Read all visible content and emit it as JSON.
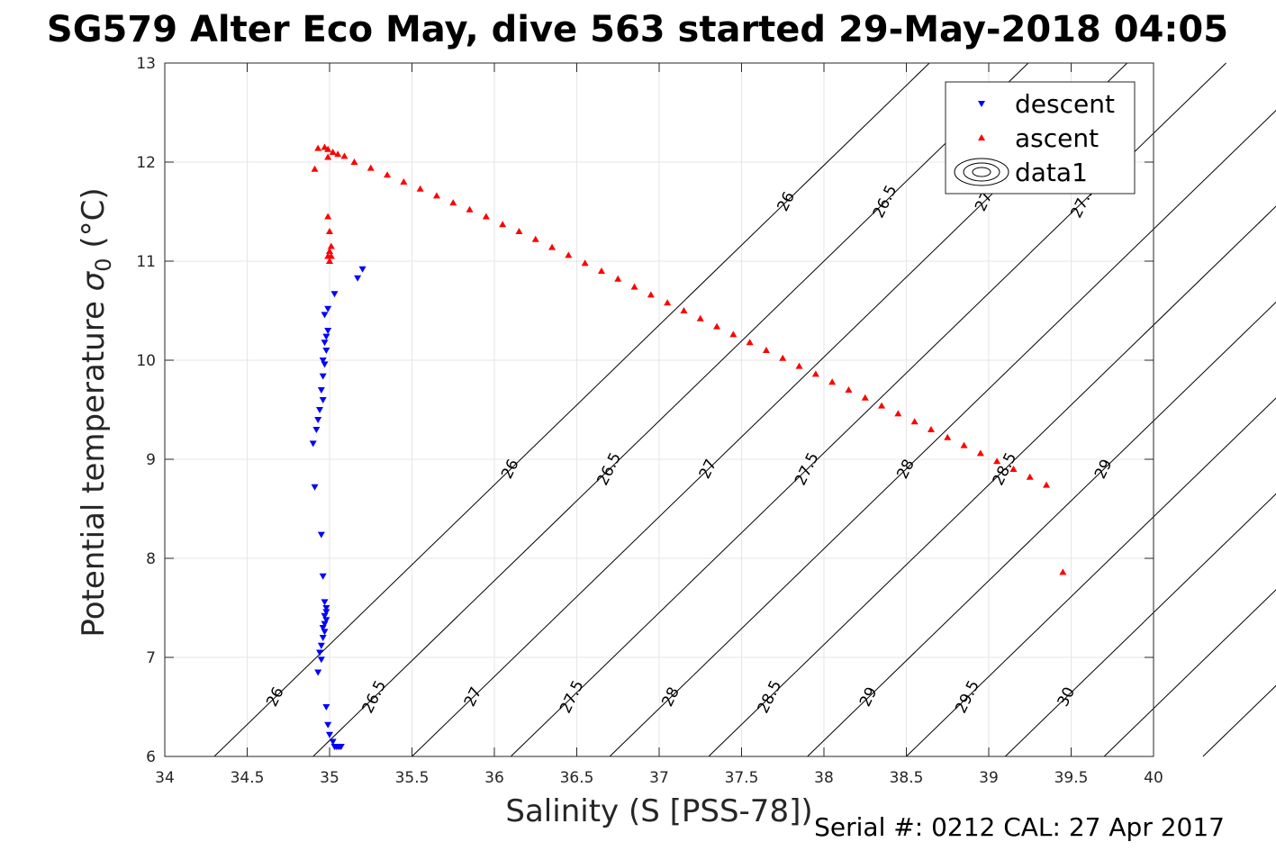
{
  "chart_data": {
    "type": "scatter",
    "title": "SG579 Alter Eco May, dive 563 started 29-May-2018 04:05",
    "xlabel": "Salinity (S [PSS-78])",
    "ylabel_main": "Potential temperature ",
    "ylabel_sigma": "σ",
    "ylabel_sub": "0",
    "ylabel_unit": " (°C)",
    "xlim": [
      34,
      40
    ],
    "ylim": [
      6,
      13
    ],
    "xticks": [
      "34",
      "34.5",
      "35",
      "35.5",
      "36",
      "36.5",
      "37",
      "37.5",
      "38",
      "38.5",
      "39",
      "39.5",
      "40"
    ],
    "yticks": [
      "6",
      "7",
      "8",
      "9",
      "10",
      "11",
      "12",
      "13"
    ],
    "grid": true,
    "legend_position": "top-right",
    "footer": "Serial #: 0212  CAL: 27 Apr 2017",
    "legend": [
      {
        "name": "descent",
        "marker": "triangle-down",
        "color": "#0000ff"
      },
      {
        "name": "ascent",
        "marker": "triangle-up",
        "color": "#ff0000"
      },
      {
        "name": "data1",
        "marker": "contour",
        "color": "#000000"
      }
    ],
    "contour_levels": [
      "26",
      "26.5",
      "27",
      "27.5",
      "28",
      "28.5",
      "29",
      "29.5",
      "30",
      "30.5",
      "31"
    ],
    "series": [
      {
        "name": "descent",
        "color": "#0000ff",
        "marker": "triangle-down",
        "points": [
          [
            35.2,
            10.92
          ],
          [
            35.17,
            10.83
          ],
          [
            35.03,
            10.67
          ],
          [
            34.99,
            10.52
          ],
          [
            34.97,
            10.46
          ],
          [
            34.99,
            10.3
          ],
          [
            34.98,
            10.24
          ],
          [
            34.97,
            10.18
          ],
          [
            34.98,
            10.1
          ],
          [
            34.96,
            10.0
          ],
          [
            34.97,
            9.96
          ],
          [
            34.96,
            9.84
          ],
          [
            34.95,
            9.7
          ],
          [
            34.96,
            9.6
          ],
          [
            34.94,
            9.5
          ],
          [
            34.93,
            9.4
          ],
          [
            34.92,
            9.3
          ],
          [
            34.9,
            9.16
          ],
          [
            34.91,
            8.72
          ],
          [
            34.95,
            8.24
          ],
          [
            34.96,
            7.82
          ],
          [
            34.97,
            7.56
          ],
          [
            34.98,
            7.5
          ],
          [
            34.98,
            7.46
          ],
          [
            34.97,
            7.42
          ],
          [
            34.98,
            7.38
          ],
          [
            34.97,
            7.34
          ],
          [
            34.96,
            7.3
          ],
          [
            34.97,
            7.26
          ],
          [
            34.96,
            7.2
          ],
          [
            34.95,
            7.12
          ],
          [
            34.94,
            7.05
          ],
          [
            34.95,
            6.98
          ],
          [
            34.93,
            6.85
          ],
          [
            34.98,
            6.5
          ],
          [
            34.99,
            6.32
          ],
          [
            35.0,
            6.22
          ],
          [
            35.02,
            6.15
          ],
          [
            35.03,
            6.1
          ],
          [
            35.05,
            6.1
          ],
          [
            35.07,
            6.1
          ],
          [
            35.04,
            6.1
          ],
          [
            35.06,
            6.1
          ]
        ]
      },
      {
        "name": "ascent",
        "color": "#ff0000",
        "marker": "triangle-up",
        "points": [
          [
            34.99,
            11.45
          ],
          [
            35.0,
            11.3
          ],
          [
            35.01,
            11.15
          ],
          [
            35.0,
            11.1
          ],
          [
            34.99,
            11.05
          ],
          [
            35.01,
            11.05
          ],
          [
            35.0,
            11.0
          ],
          [
            34.99,
            12.05
          ],
          [
            34.91,
            11.93
          ],
          [
            34.93,
            12.14
          ],
          [
            34.97,
            12.15
          ],
          [
            34.99,
            12.13
          ],
          [
            35.02,
            12.1
          ],
          [
            35.05,
            12.08
          ],
          [
            35.09,
            12.06
          ],
          [
            35.15,
            12.0
          ],
          [
            35.25,
            11.94
          ],
          [
            35.35,
            11.87
          ],
          [
            35.45,
            11.8
          ],
          [
            35.55,
            11.73
          ],
          [
            35.65,
            11.66
          ],
          [
            35.75,
            11.59
          ],
          [
            35.85,
            11.52
          ],
          [
            35.95,
            11.45
          ],
          [
            36.05,
            11.37
          ],
          [
            36.15,
            11.3
          ],
          [
            36.25,
            11.22
          ],
          [
            36.35,
            11.14
          ],
          [
            36.45,
            11.06
          ],
          [
            36.55,
            10.98
          ],
          [
            36.65,
            10.9
          ],
          [
            36.75,
            10.82
          ],
          [
            36.85,
            10.74
          ],
          [
            36.95,
            10.66
          ],
          [
            37.05,
            10.58
          ],
          [
            37.15,
            10.5
          ],
          [
            37.25,
            10.42
          ],
          [
            37.35,
            10.34
          ],
          [
            37.45,
            10.26
          ],
          [
            37.55,
            10.18
          ],
          [
            37.65,
            10.1
          ],
          [
            37.75,
            10.02
          ],
          [
            37.85,
            9.94
          ],
          [
            37.95,
            9.86
          ],
          [
            38.05,
            9.78
          ],
          [
            38.15,
            9.7
          ],
          [
            38.25,
            9.62
          ],
          [
            38.35,
            9.54
          ],
          [
            38.45,
            9.46
          ],
          [
            38.55,
            9.38
          ],
          [
            38.65,
            9.3
          ],
          [
            38.75,
            9.22
          ],
          [
            38.85,
            9.14
          ],
          [
            38.95,
            9.06
          ],
          [
            39.05,
            8.98
          ],
          [
            39.15,
            8.9
          ],
          [
            39.25,
            8.82
          ],
          [
            39.35,
            8.74
          ],
          [
            39.45,
            7.86
          ]
        ]
      }
    ]
  }
}
